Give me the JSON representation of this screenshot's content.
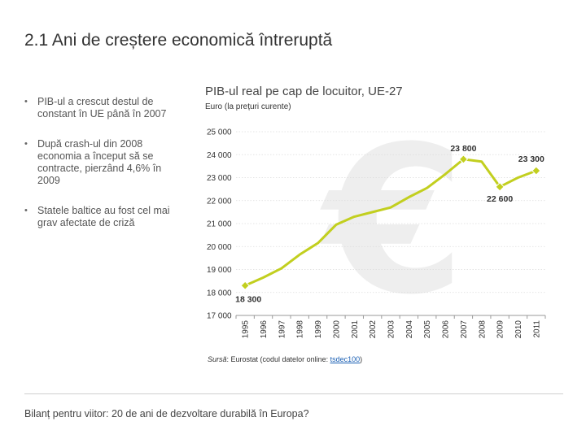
{
  "title_number": "2.1",
  "title_text": "Ani de creștere economică întreruptă",
  "bullets": [
    "PIB-ul a crescut destul de constant în UE până în 2007",
    "După crash-ul din 2008 economia a început să se contracte, pierzând 4,6% în 2009",
    "Statele baltice au fost cel mai grav afectate de criză"
  ],
  "source": {
    "label": "Sursă",
    "text": ": Eurostat (codul datelor online: ",
    "code": "tsdec100",
    "end": ")"
  },
  "footer": "Bilanț pentru viitor: 20 de ani de dezvoltare durabilă în Europa?",
  "chart_data": {
    "type": "line",
    "title": "PIB-ul real pe cap de locuitor, UE-27",
    "subtitle": "Euro (la prețuri curente)",
    "x": [
      "1995",
      "1996",
      "1997",
      "1998",
      "1999",
      "2000",
      "2001",
      "2002",
      "2003",
      "2004",
      "2005",
      "2006",
      "2007",
      "2008",
      "2009",
      "2010",
      "2011"
    ],
    "values": [
      18300,
      18650,
      19050,
      19650,
      20150,
      20950,
      21300,
      21500,
      21700,
      22150,
      22550,
      23150,
      23800,
      23700,
      22600,
      23000,
      23300
    ],
    "ylim": [
      17000,
      25000
    ],
    "yticks": [
      "17 000",
      "18 000",
      "19 000",
      "20 000",
      "21 000",
      "22 000",
      "23 000",
      "24 000",
      "25 000"
    ],
    "ytick_values": [
      17000,
      18000,
      19000,
      20000,
      21000,
      22000,
      23000,
      24000,
      25000
    ],
    "grid": true,
    "annotations": [
      {
        "x": "1995",
        "label": "18 300"
      },
      {
        "x": "2007",
        "label": "23 800"
      },
      {
        "x": "2009",
        "label": "22 600"
      },
      {
        "x": "2011",
        "label": "23 300"
      }
    ],
    "marker_years": [
      "1995",
      "2007",
      "2009",
      "2011"
    ],
    "line_color": "#c2cf1f",
    "watermark_icon": "euro-icon"
  }
}
